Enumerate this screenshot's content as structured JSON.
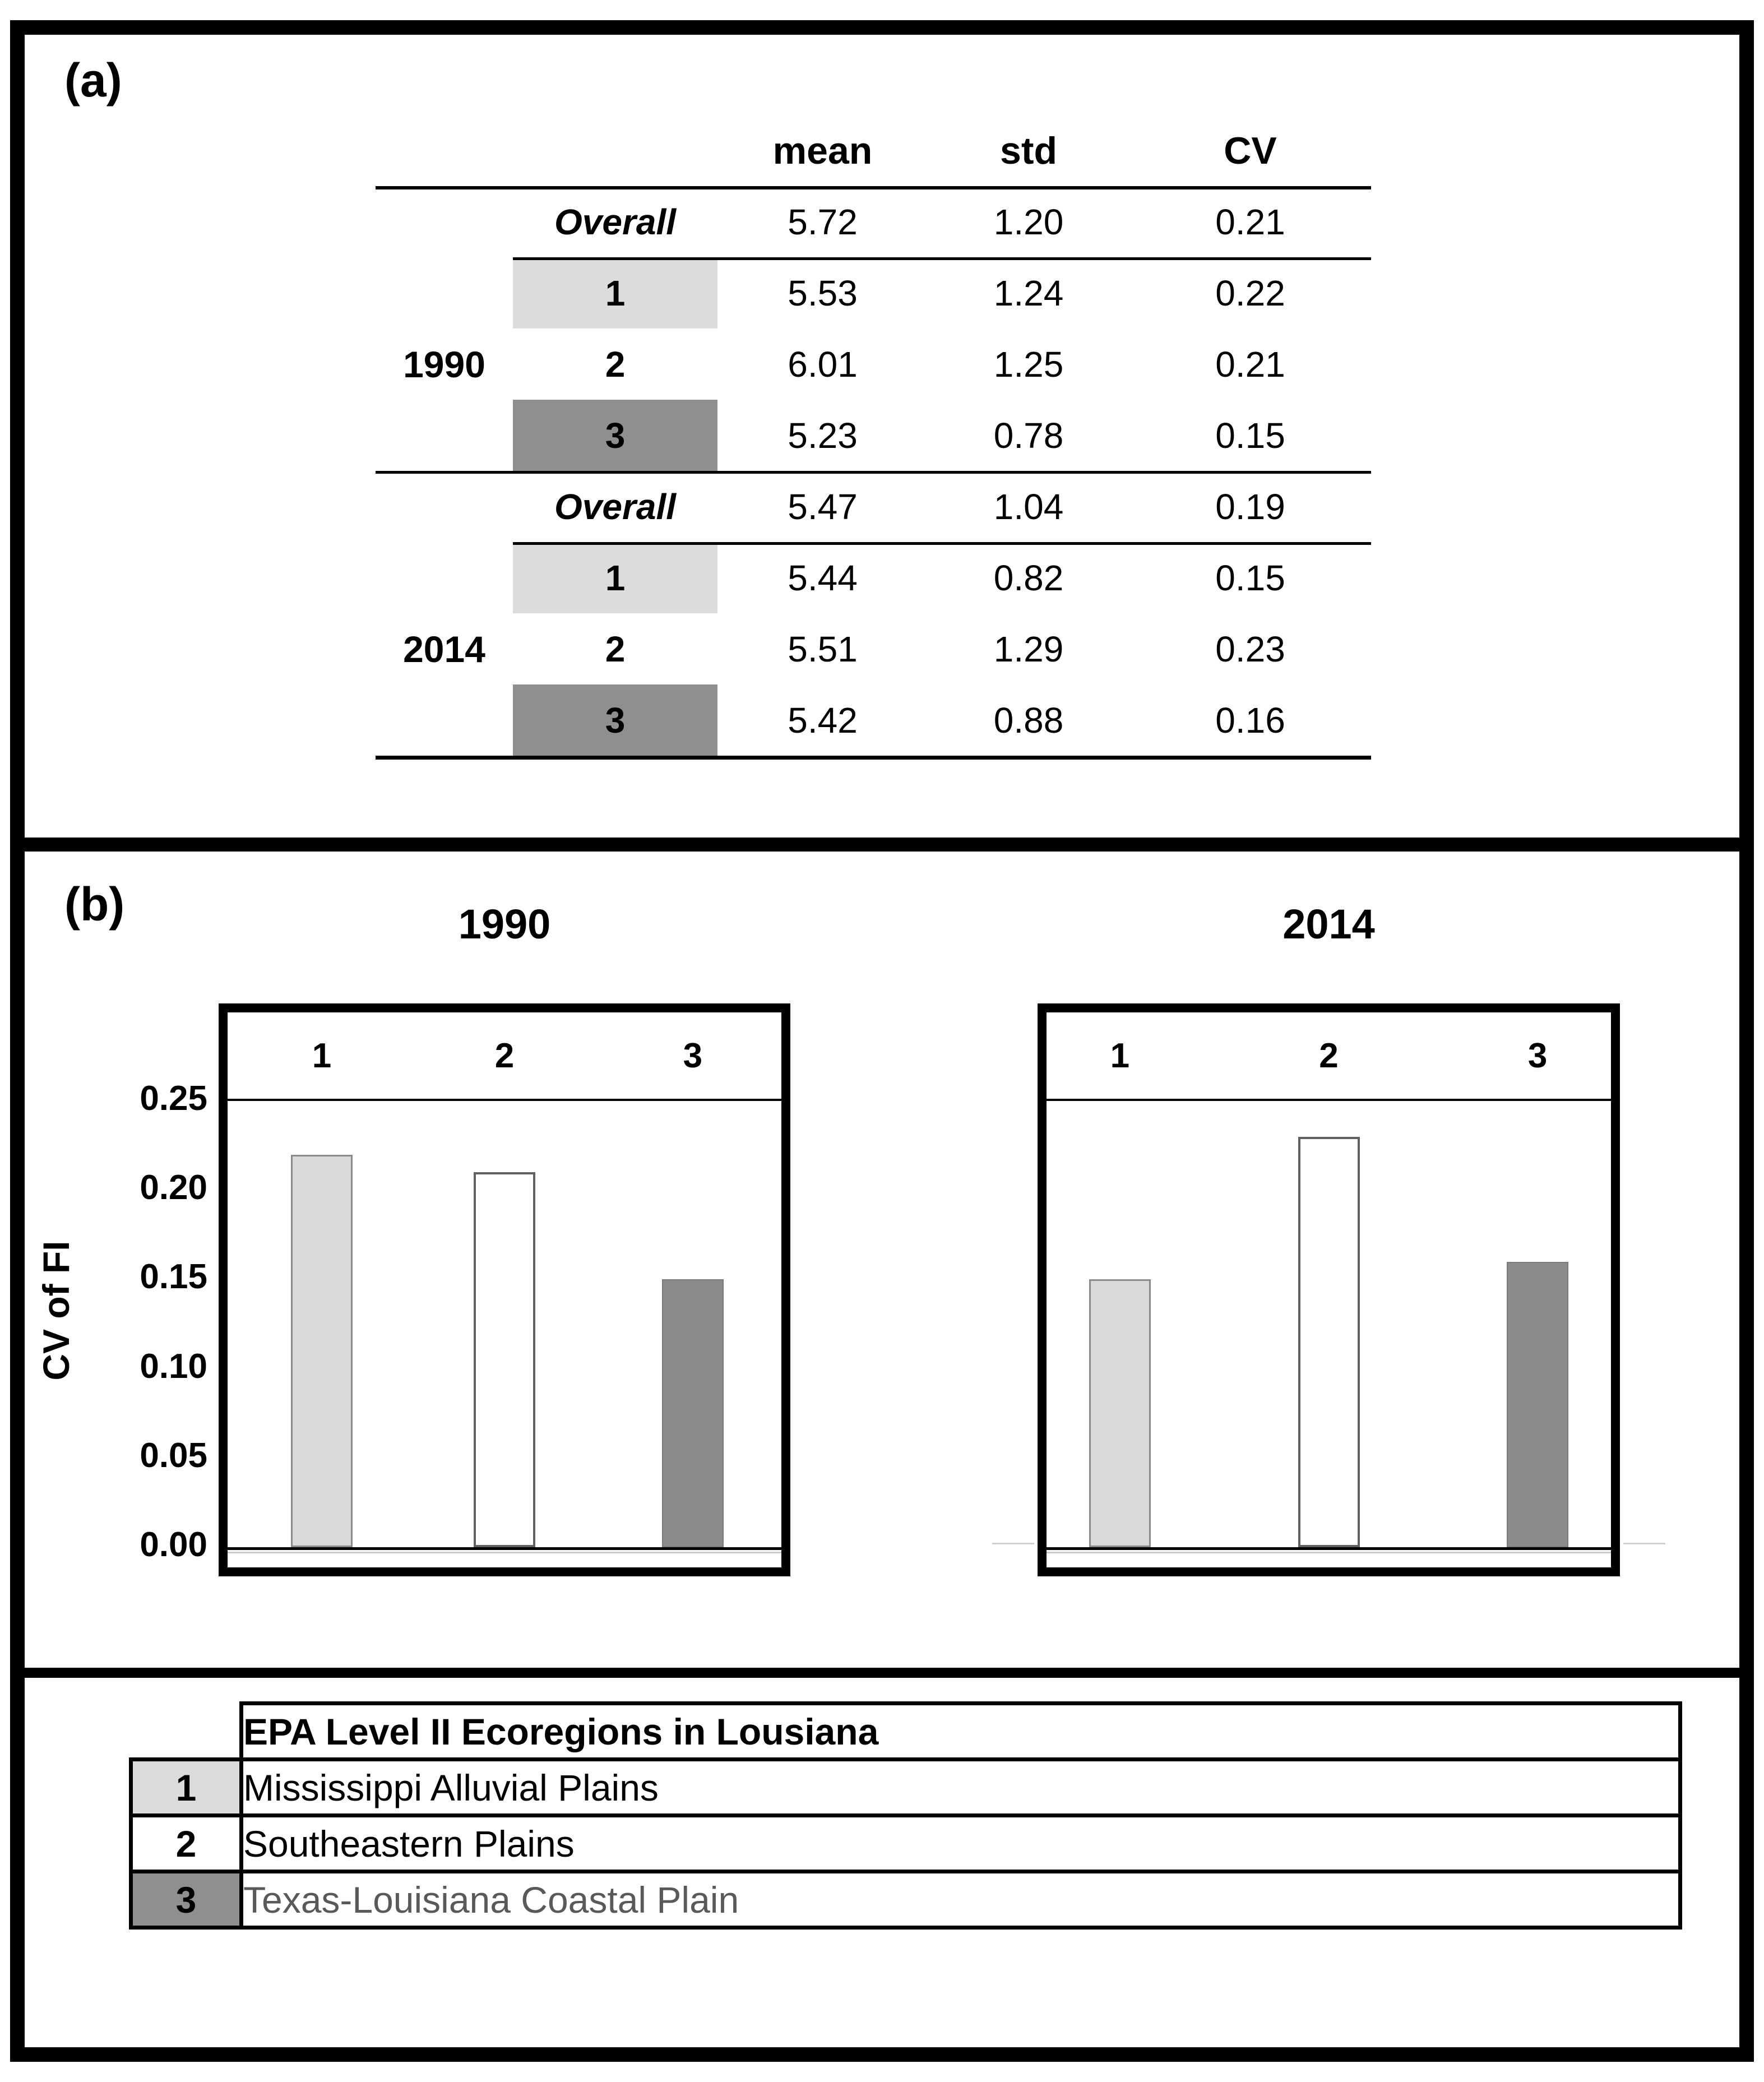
{
  "panel_a": {
    "label": "(a)",
    "columns": {
      "mean": "mean",
      "std": "std",
      "cv": "CV"
    },
    "groups": [
      {
        "year": "1990",
        "overall": {
          "label": "Overall",
          "mean": "5.72",
          "std": "1.20",
          "cv": "0.21"
        },
        "rows": [
          {
            "region": "1",
            "mean": "5.53",
            "std": "1.24",
            "cv": "0.22",
            "shade": "light"
          },
          {
            "region": "2",
            "mean": "6.01",
            "std": "1.25",
            "cv": "0.21",
            "shade": "none"
          },
          {
            "region": "3",
            "mean": "5.23",
            "std": "0.78",
            "cv": "0.15",
            "shade": "dark"
          }
        ]
      },
      {
        "year": "2014",
        "overall": {
          "label": "Overall",
          "mean": "5.47",
          "std": "1.04",
          "cv": "0.19"
        },
        "rows": [
          {
            "region": "1",
            "mean": "5.44",
            "std": "0.82",
            "cv": "0.15",
            "shade": "light"
          },
          {
            "region": "2",
            "mean": "5.51",
            "std": "1.29",
            "cv": "0.23",
            "shade": "none"
          },
          {
            "region": "3",
            "mean": "5.42",
            "std": "0.88",
            "cv": "0.16",
            "shade": "dark"
          }
        ]
      }
    ]
  },
  "panel_b": {
    "label": "(b)",
    "ylabel": "CV of FI",
    "ymax": 0.25,
    "yticks": [
      "0.25",
      "0.20",
      "0.15",
      "0.10",
      "0.05",
      "0.00"
    ]
  },
  "chart_data": [
    {
      "type": "bar",
      "title": "1990",
      "categories": [
        "1",
        "2",
        "3"
      ],
      "values": [
        0.22,
        0.21,
        0.15
      ],
      "xlabel": "",
      "ylabel": "CV of FI",
      "ylim": [
        0,
        0.25
      ],
      "yticks": [
        0.0,
        0.05,
        0.1,
        0.15,
        0.2,
        0.25
      ],
      "grid": false,
      "legend_position": "none",
      "bar_styles": [
        "light-gray",
        "white",
        "dark-gray"
      ]
    },
    {
      "type": "bar",
      "title": "2014",
      "categories": [
        "1",
        "2",
        "3"
      ],
      "values": [
        0.15,
        0.23,
        0.16
      ],
      "xlabel": "",
      "ylabel": "",
      "ylim": [
        0,
        0.25
      ],
      "yticks": [],
      "grid": false,
      "legend_position": "none",
      "shared_y_axis_with": "1990",
      "bar_styles": [
        "light-gray",
        "white",
        "dark-gray"
      ]
    },
    {
      "type": "table",
      "title": "FI statistics by year and ecoregion",
      "columns": [
        "mean",
        "std",
        "CV"
      ],
      "rows": [
        {
          "year": "1990",
          "group": "Overall",
          "mean": 5.72,
          "std": 1.2,
          "cv": 0.21
        },
        {
          "year": "1990",
          "group": "1",
          "mean": 5.53,
          "std": 1.24,
          "cv": 0.22
        },
        {
          "year": "1990",
          "group": "2",
          "mean": 6.01,
          "std": 1.25,
          "cv": 0.21
        },
        {
          "year": "1990",
          "group": "3",
          "mean": 5.23,
          "std": 0.78,
          "cv": 0.15
        },
        {
          "year": "2014",
          "group": "Overall",
          "mean": 5.47,
          "std": 1.04,
          "cv": 0.19
        },
        {
          "year": "2014",
          "group": "1",
          "mean": 5.44,
          "std": 0.82,
          "cv": 0.15
        },
        {
          "year": "2014",
          "group": "2",
          "mean": 5.51,
          "std": 1.29,
          "cv": 0.23
        },
        {
          "year": "2014",
          "group": "3",
          "mean": 5.42,
          "std": 0.88,
          "cv": 0.16
        }
      ]
    }
  ],
  "legend": {
    "title": "EPA Level II Ecoregions in Lousiana",
    "rows": [
      {
        "num": "1",
        "name": "Mississippi Alluvial Plains",
        "shade": "light"
      },
      {
        "num": "2",
        "name": "Southeastern Plains",
        "shade": "none"
      },
      {
        "num": "3",
        "name": "Texas-Louisiana Coastal Plain",
        "shade": "dark"
      }
    ]
  },
  "colors": {
    "light_gray_cell": "#dcdcdc",
    "dark_gray_cell": "#8f8f8f",
    "bar1_fill": "#d9d9d9",
    "bar2_fill": "#ffffff",
    "bar3_fill": "#8c8c8c",
    "bar_border": "#7a7a7a",
    "zero_gridline": "#c9c9c9",
    "muted_text": "#595959",
    "frame": "#000000"
  }
}
